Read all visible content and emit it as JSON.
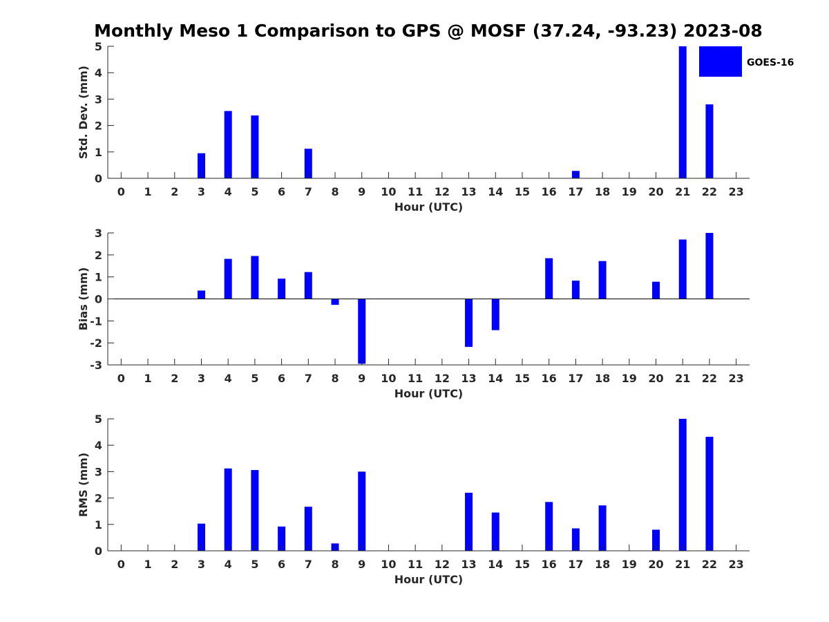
{
  "title": "Monthly Meso 1 Comparison to GPS @ MOSF (37.24, -93.23) 2023-08",
  "colors": {
    "bar": "#0000ff",
    "axis": "#262626"
  },
  "legend": {
    "label": "GOES-16",
    "placement": "top-right"
  },
  "chart_data": [
    {
      "type": "bar",
      "name": "std-dev",
      "xlabel": "Hour (UTC)",
      "ylabel": "Std. Dev. (mm)",
      "x": [
        0,
        1,
        2,
        3,
        4,
        5,
        6,
        7,
        8,
        9,
        10,
        11,
        12,
        13,
        14,
        15,
        16,
        17,
        18,
        19,
        20,
        21,
        22,
        23
      ],
      "xlim": [
        -0.5,
        23.5
      ],
      "ylim": [
        0,
        5
      ],
      "yticks": [
        0,
        1,
        2,
        3,
        4,
        5
      ],
      "grid": false,
      "series": [
        {
          "name": "GOES-16",
          "values": [
            0,
            0,
            0,
            0.95,
            2.55,
            2.38,
            0,
            1.12,
            0,
            0,
            0,
            0,
            0,
            0,
            0,
            0,
            0,
            0.28,
            0,
            0,
            0,
            5.0,
            2.8,
            0
          ]
        }
      ]
    },
    {
      "type": "bar",
      "name": "bias",
      "xlabel": "Hour (UTC)",
      "ylabel": "Bias (mm)",
      "x": [
        0,
        1,
        2,
        3,
        4,
        5,
        6,
        7,
        8,
        9,
        10,
        11,
        12,
        13,
        14,
        15,
        16,
        17,
        18,
        19,
        20,
        21,
        22,
        23
      ],
      "xlim": [
        -0.5,
        23.5
      ],
      "ylim": [
        -3,
        3
      ],
      "yticks": [
        -3,
        -2,
        -1,
        0,
        1,
        2,
        3
      ],
      "zero_line": true,
      "grid": false,
      "series": [
        {
          "name": "GOES-16",
          "values": [
            0,
            0,
            0,
            0.38,
            1.82,
            1.95,
            0.92,
            1.22,
            -0.27,
            -2.95,
            0,
            0,
            0,
            -2.18,
            -1.42,
            0,
            1.85,
            0.83,
            1.72,
            0,
            0.78,
            2.7,
            3.0,
            0
          ]
        }
      ]
    },
    {
      "type": "bar",
      "name": "rms",
      "xlabel": "Hour (UTC)",
      "ylabel": "RMS (mm)",
      "x": [
        0,
        1,
        2,
        3,
        4,
        5,
        6,
        7,
        8,
        9,
        10,
        11,
        12,
        13,
        14,
        15,
        16,
        17,
        18,
        19,
        20,
        21,
        22,
        23
      ],
      "xlim": [
        -0.5,
        23.5
      ],
      "ylim": [
        0,
        5
      ],
      "yticks": [
        0,
        1,
        2,
        3,
        4,
        5
      ],
      "grid": false,
      "series": [
        {
          "name": "GOES-16",
          "values": [
            0,
            0,
            0,
            1.03,
            3.12,
            3.06,
            0.92,
            1.67,
            0.28,
            3.0,
            0,
            0,
            0,
            2.2,
            1.45,
            0,
            1.85,
            0.85,
            1.72,
            0,
            0.8,
            5.0,
            4.32,
            0
          ]
        }
      ]
    }
  ]
}
